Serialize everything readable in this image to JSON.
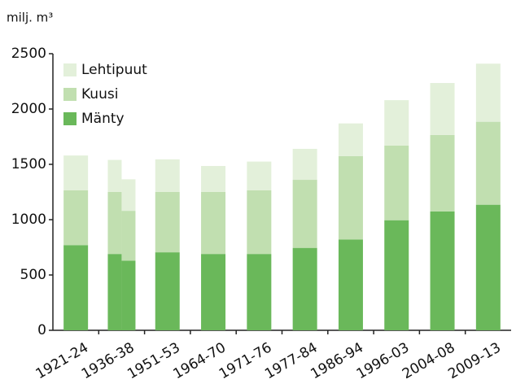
{
  "chart_data": {
    "type": "stacked_bar",
    "y_label": "milj. m³",
    "categories": [
      "1921-24",
      "1936-38",
      null,
      "1951-53",
      "1964-70",
      "1971-76",
      "1977-84",
      "1986-94",
      "1996-03",
      "2004-08",
      "2009-13"
    ],
    "series": [
      {
        "name": "Mänty",
        "color": "#6ab85a",
        "values": [
          770,
          690,
          630,
          705,
          690,
          690,
          745,
          820,
          995,
          1075,
          1135
        ]
      },
      {
        "name": "Kuusi",
        "color": "#c1dfb0",
        "values": [
          495,
          560,
          450,
          545,
          560,
          575,
          615,
          755,
          675,
          690,
          750
        ]
      },
      {
        "name": "Lehtipuut",
        "color": "#e3f0da",
        "values": [
          315,
          290,
          285,
          295,
          235,
          260,
          280,
          295,
          410,
          470,
          525
        ]
      }
    ],
    "ylim": [
      0,
      2500
    ],
    "yticks": [
      0,
      500,
      1000,
      1500,
      2000,
      2500
    ],
    "legend": "upper left"
  }
}
